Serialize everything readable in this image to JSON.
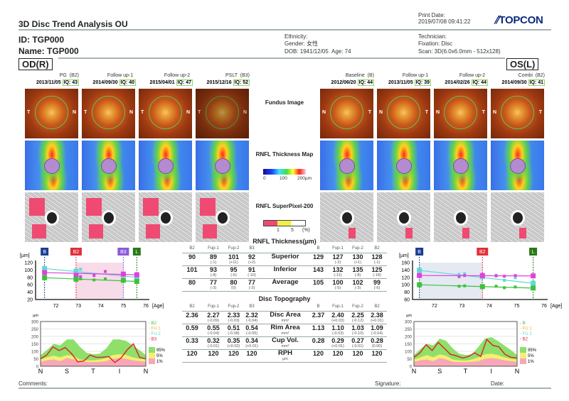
{
  "header": {
    "title": "3D Disc Trend Analysis OU",
    "print_date_label": "Print Date:",
    "print_date": "2019/07/08 09:41:22",
    "logo": "TOPCON",
    "id": "ID: TGP000",
    "name": "Name: TGP000",
    "ethnicity": "Ethnicity:",
    "gender": "Gender: 女性",
    "dob": "DOB: 1941/12/05",
    "age": "Age: 74",
    "technician": "Technician:",
    "fixation": "Fixation: Disc",
    "scan": "Scan: 3D(6.0x6.0mm - 512x128)"
  },
  "eyes": {
    "right": "OD(R)",
    "left": "OS(L)"
  },
  "exams": [
    {
      "label": "PG",
      "tag": "(B2)",
      "date": "2013/11/05",
      "iq": "IQ: 43"
    },
    {
      "label": "Follow up-1",
      "tag": "",
      "date": "2014/09/30",
      "iq": "IQ: 40"
    },
    {
      "label": "Follow up-2",
      "tag": "",
      "date": "2015/04/01",
      "iq": "IQ: 47"
    },
    {
      "label": "PSLT",
      "tag": "(B3)",
      "date": "2015/12/16",
      "iq": "IQ: 52"
    },
    {
      "label": "Baseline",
      "tag": "(B)",
      "date": "2012/06/20",
      "iq": "IQ: 44"
    },
    {
      "label": "Follow up-1",
      "tag": "",
      "date": "2013/11/05",
      "iq": "IQ: 39"
    },
    {
      "label": "Follow up-2",
      "tag": "",
      "date": "2014/02/26",
      "iq": "IQ: 44"
    },
    {
      "label": "Combi",
      "tag": "(B2)",
      "date": "2014/09/30",
      "iq": "IQ: 41"
    }
  ],
  "middle": {
    "fundus": "Fundus Image",
    "rnfl_map": "RNFL Thickness Map",
    "scale": [
      "0",
      "100",
      "200µm"
    ],
    "superpixel": "RNFL SuperPixel-200",
    "sp_scale": [
      "1",
      "5",
      "(%)"
    ]
  },
  "rnfl": {
    "title": "RNFL Thickness(µm)",
    "left_heads": [
      "B2",
      "Fup-1",
      "Fup-2",
      "B3"
    ],
    "right_heads": [
      "B",
      "Fup-1",
      "Fup-2",
      "B2"
    ],
    "rows": [
      {
        "label": "Superior",
        "unit": "",
        "left": [
          [
            "90",
            ""
          ],
          [
            "89",
            "(-1)"
          ],
          [
            "101",
            "(+11)"
          ],
          [
            "92",
            "(+2)"
          ]
        ],
        "right": [
          [
            "129",
            ""
          ],
          [
            "127",
            "(-2)"
          ],
          [
            "130",
            "(+1)"
          ],
          [
            "128",
            "(-1)"
          ]
        ]
      },
      {
        "label": "Inferior",
        "unit": "",
        "left": [
          [
            "101",
            ""
          ],
          [
            "93",
            "(-8)"
          ],
          [
            "95",
            "(-6)"
          ],
          [
            "91",
            "(-10)"
          ]
        ],
        "right": [
          [
            "143",
            ""
          ],
          [
            "132",
            "(-11)"
          ],
          [
            "135",
            "(-8)"
          ],
          [
            "125",
            "(-18)"
          ]
        ]
      },
      {
        "label": "Average",
        "unit": "",
        "left": [
          [
            "80",
            ""
          ],
          [
            "77",
            "(-3)"
          ],
          [
            "80",
            "(0)"
          ],
          [
            "77",
            "(-3)"
          ]
        ],
        "right": [
          [
            "105",
            ""
          ],
          [
            "100",
            "(-5)"
          ],
          [
            "102",
            "(-3)"
          ],
          [
            "99",
            "(-6)"
          ]
        ]
      }
    ]
  },
  "disc": {
    "title": "Disc Topography",
    "left_heads": [
      "B2",
      "Fup-1",
      "Fup-2",
      "B3"
    ],
    "right_heads": [
      "B",
      "Fup-1",
      "Fup-2",
      "B2"
    ],
    "rows": [
      {
        "label": "Disc Area",
        "unit": "mm²",
        "left": [
          [
            "2.36",
            ""
          ],
          [
            "2.27",
            "(-0.09)"
          ],
          [
            "2.33",
            "(-0.03)"
          ],
          [
            "2.32",
            "(-0.04)"
          ]
        ],
        "right": [
          [
            "2.37",
            ""
          ],
          [
            "2.40",
            "(+0.03)"
          ],
          [
            "2.25",
            "(-0.12)"
          ],
          [
            "2.38",
            "(+0.01)"
          ]
        ]
      },
      {
        "label": "Rim Area",
        "unit": "mm²",
        "left": [
          [
            "0.59",
            ""
          ],
          [
            "0.55",
            "(-0.04)"
          ],
          [
            "0.51",
            "(-0.08)"
          ],
          [
            "0.54",
            "(-0.05)"
          ]
        ],
        "right": [
          [
            "1.13",
            ""
          ],
          [
            "1.10",
            "(-0.03)"
          ],
          [
            "1.03",
            "(-0.10)"
          ],
          [
            "1.09",
            "(-0.04)"
          ]
        ]
      },
      {
        "label": "Cup Vol.",
        "unit": "mm³",
        "left": [
          [
            "0.33",
            ""
          ],
          [
            "0.32",
            "(-0.01)"
          ],
          [
            "0.35",
            "(+0.02)"
          ],
          [
            "0.34",
            "(+0.01)"
          ]
        ],
        "right": [
          [
            "0.28",
            ""
          ],
          [
            "0.29",
            "(+0.01)"
          ],
          [
            "0.27",
            "(-0.01)"
          ],
          [
            "0.28",
            "(0.00)"
          ]
        ]
      },
      {
        "label": "RPH",
        "unit": "µm",
        "left": [
          [
            "120",
            ""
          ],
          [
            "120",
            ""
          ],
          [
            "120",
            ""
          ],
          [
            "120",
            ""
          ]
        ],
        "right": [
          [
            "120",
            ""
          ],
          [
            "120",
            ""
          ],
          [
            "120",
            ""
          ],
          [
            "120",
            ""
          ]
        ]
      }
    ]
  },
  "chart_data": [
    {
      "type": "line",
      "eye": "OD(R)",
      "ylabel": "[µm]",
      "xlabel": "[Age]",
      "xlim": [
        71.1,
        76
      ],
      "ylim": [
        20,
        120
      ],
      "yticks": [
        20,
        40,
        60,
        80,
        100,
        120
      ],
      "xticks": [
        72,
        73,
        74,
        75,
        76
      ],
      "markers": [
        {
          "label": "B",
          "age": 71.5,
          "color": "#1a3f8f"
        },
        {
          "label": "B2",
          "age": 72.9,
          "color": "#e0303a"
        },
        {
          "label": "B3",
          "age": 75.0,
          "color": "#8a5ad8"
        },
        {
          "label": "L",
          "age": 75.6,
          "color": "#2a7a1a"
        }
      ],
      "shade": [
        72.9,
        75.0
      ],
      "shade_color": "#f7dbe8",
      "series": [
        {
          "color": "#5fd8d8",
          "x": [
            71.5,
            72.9,
            73.1,
            73.7,
            75.0,
            75.6
          ],
          "y": [
            104,
            97,
            102,
            88,
            87,
            80
          ]
        },
        {
          "color": "#e040e0",
          "x": [
            71.5,
            72.9,
            73.1,
            73.7,
            74.2,
            75.0,
            75.6
          ],
          "y": [
            93,
            85,
            82,
            85,
            96,
            89,
            87
          ]
        },
        {
          "color": "#3cc23c",
          "x": [
            71.5,
            72.9,
            73.1,
            73.7,
            74.2,
            75.0,
            75.6
          ],
          "y": [
            79,
            75,
            76,
            73,
            76,
            72,
            69
          ]
        }
      ]
    },
    {
      "type": "line",
      "eye": "OS(L)",
      "ylabel": "[µm]",
      "xlabel": "[Age]",
      "xlim": [
        71.2,
        76
      ],
      "ylim": [
        60,
        160
      ],
      "yticks": [
        60,
        80,
        100,
        120,
        140,
        160
      ],
      "xticks": [
        72,
        73,
        74,
        75,
        76
      ],
      "markers": [
        {
          "label": "B",
          "age": 71.45,
          "color": "#1a3f8f"
        },
        {
          "label": "B2",
          "age": 73.75,
          "color": "#e0303a"
        },
        {
          "label": "L",
          "age": 75.6,
          "color": "#2a7a1a"
        }
      ],
      "shade": [
        71.45,
        73.75
      ],
      "shade_color": "#e4e9f2",
      "series": [
        {
          "color": "#5fd8d8",
          "x": [
            71.45,
            72.9,
            73.1,
            73.75,
            74.25,
            74.55,
            74.95,
            75.6
          ],
          "y": [
            139,
            128,
            130,
            122,
            126,
            112,
            119,
            104
          ]
        },
        {
          "color": "#e040e0",
          "x": [
            71.45,
            72.9,
            73.1,
            73.75,
            74.25,
            74.55,
            74.95,
            75.6
          ],
          "y": [
            125,
            122,
            125,
            125,
            124,
            123,
            125,
            124
          ]
        },
        {
          "color": "#3cc23c",
          "x": [
            71.45,
            72.9,
            73.1,
            73.75,
            74.25,
            74.55,
            74.95,
            75.6
          ],
          "y": [
            100,
            96,
            97,
            95,
            96,
            92,
            94,
            91
          ]
        }
      ]
    },
    {
      "type": "area",
      "eye": "OD(R)",
      "ylabel": "µm",
      "ylim": [
        0,
        300
      ],
      "yticks": [
        0,
        50,
        100,
        150,
        200,
        250,
        300
      ],
      "xticks": [
        "N",
        "S",
        "T",
        "I",
        "N"
      ],
      "legend": [
        {
          "label": "B2",
          "color": "#3cc23c"
        },
        {
          "label": "FU 1",
          "color": "#f0b020"
        },
        {
          "label": "FU 2",
          "color": "#5fd8d8"
        },
        {
          "label": "B3",
          "color": "#e02040"
        }
      ],
      "bands": [
        {
          "label": "95%",
          "color": "#8ee06a"
        },
        {
          "label": "5%",
          "color": "#f5ef70"
        },
        {
          "label": "1%",
          "color": "#f7a8b8"
        }
      ],
      "p95": [
        75,
        110,
        150,
        140,
        180,
        180,
        130,
        90,
        80,
        85,
        120,
        180,
        180,
        170,
        140,
        110,
        75
      ],
      "p5": [
        45,
        60,
        70,
        60,
        75,
        70,
        45,
        40,
        40,
        45,
        55,
        75,
        80,
        75,
        60,
        50,
        45
      ],
      "p1": [
        30,
        40,
        45,
        35,
        55,
        45,
        30,
        28,
        28,
        30,
        35,
        50,
        55,
        50,
        40,
        35,
        30
      ],
      "measured": [
        50,
        75,
        130,
        105,
        125,
        85,
        30,
        35,
        75,
        60,
        60,
        65,
        25,
        55,
        110,
        150,
        60,
        50
      ]
    },
    {
      "type": "area",
      "eye": "OS(L)",
      "ylabel": "µm",
      "ylim": [
        0,
        300
      ],
      "yticks": [
        0,
        50,
        100,
        150,
        200,
        250,
        300
      ],
      "xticks": [
        "N",
        "S",
        "T",
        "I",
        "N"
      ],
      "legend": [
        {
          "label": "B",
          "color": "#3cc23c"
        },
        {
          "label": "FU 1",
          "color": "#f0b020"
        },
        {
          "label": "FU 2",
          "color": "#5fd8d8"
        },
        {
          "label": "B2",
          "color": "#e02040"
        }
      ],
      "bands": [
        {
          "label": "95%",
          "color": "#8ee06a"
        },
        {
          "label": "5%",
          "color": "#f5ef70"
        },
        {
          "label": "1%",
          "color": "#f7a8b8"
        }
      ],
      "p95": [
        75,
        115,
        150,
        140,
        185,
        170,
        120,
        85,
        75,
        80,
        130,
        185,
        195,
        170,
        140,
        110,
        75
      ],
      "p5": [
        45,
        60,
        75,
        60,
        80,
        70,
        45,
        40,
        38,
        45,
        60,
        80,
        85,
        75,
        60,
        50,
        45
      ],
      "p1": [
        30,
        40,
        45,
        35,
        55,
        45,
        30,
        28,
        28,
        30,
        35,
        50,
        55,
        50,
        40,
        35,
        30
      ],
      "measured": [
        60,
        90,
        145,
        105,
        160,
        120,
        80,
        70,
        55,
        65,
        90,
        65,
        180,
        140,
        130,
        80,
        60,
        55
      ]
    }
  ],
  "footer": {
    "comments": "Comments:",
    "signature": "Signature:",
    "date": "Date:"
  }
}
